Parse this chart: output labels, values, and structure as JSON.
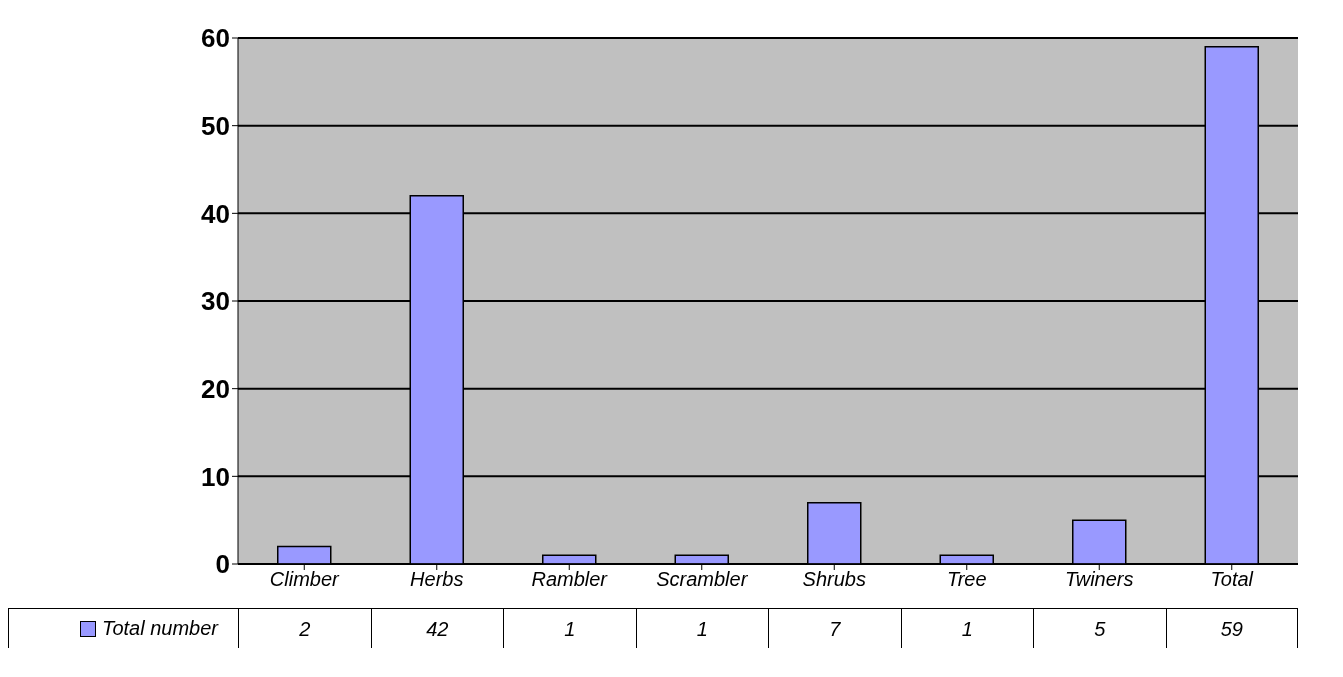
{
  "chart_data": {
    "type": "bar",
    "categories": [
      "Climber",
      "Herbs",
      "Rambler",
      "Scrambler",
      "Shrubs",
      "Tree",
      "Twiners",
      "Total"
    ],
    "series": [
      {
        "name": "Total number",
        "color": "#9999ff",
        "values": [
          2,
          42,
          1,
          1,
          7,
          1,
          5,
          59
        ]
      }
    ],
    "ylim": [
      0,
      60
    ],
    "yticks": [
      0,
      10,
      20,
      30,
      40,
      50,
      60
    ],
    "grid": "y",
    "legend": "bottom left",
    "data_labels": true
  }
}
